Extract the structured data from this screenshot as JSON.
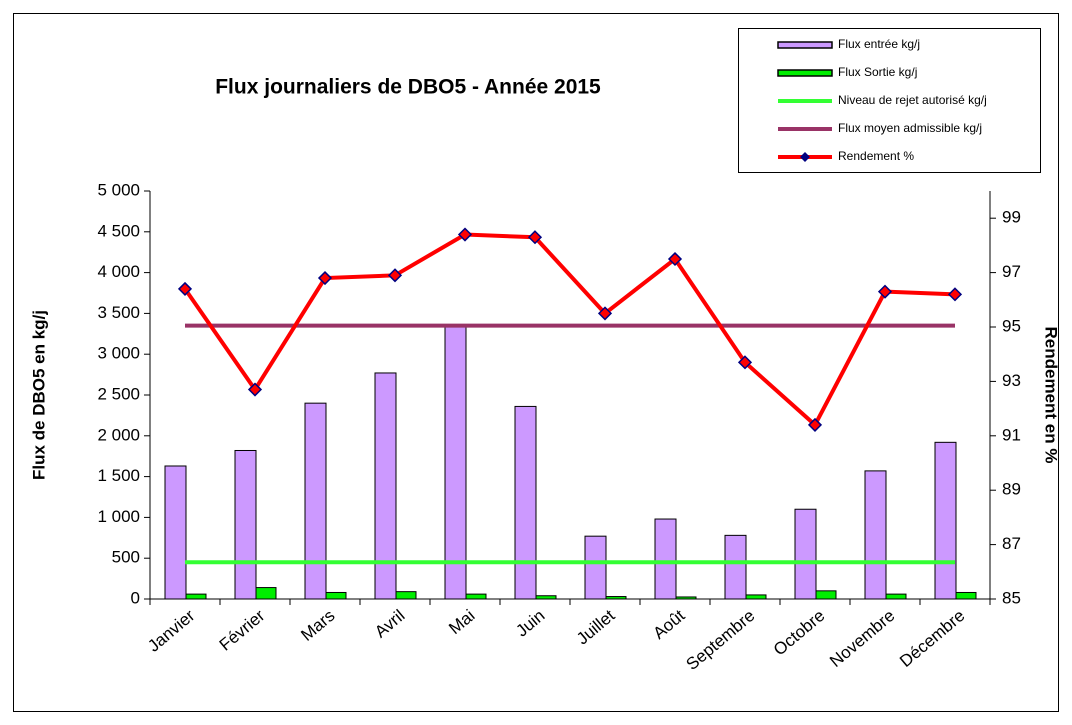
{
  "chart_data": {
    "type": "bar",
    "title": "Flux journaliers de DBO5 - Année 2015",
    "y_label": "Flux de DBO5 en kg/j",
    "y2_label": "Rendement en %",
    "categories": [
      "Janvier",
      "Février",
      "Mars",
      "Avril",
      "Mai",
      "Juin",
      "Juillet",
      "Août",
      "Septembre",
      "Octobre",
      "Novembre",
      "Décembre"
    ],
    "ylim": [
      0,
      5000
    ],
    "yticks": [
      {
        "value": 0,
        "label": "0"
      },
      {
        "value": 500,
        "label": "500"
      },
      {
        "value": 1000,
        "label": "1 000"
      },
      {
        "value": 1500,
        "label": "1 500"
      },
      {
        "value": 2000,
        "label": "2 000"
      },
      {
        "value": 2500,
        "label": "2 500"
      },
      {
        "value": 3000,
        "label": "3 000"
      },
      {
        "value": 3500,
        "label": "3 500"
      },
      {
        "value": 4000,
        "label": "4 000"
      },
      {
        "value": 4500,
        "label": "4 500"
      },
      {
        "value": 5000,
        "label": "5 000"
      }
    ],
    "y2lim": [
      85,
      100
    ],
    "y2ticks": [
      85,
      87,
      89,
      91,
      93,
      95,
      97,
      99
    ],
    "series": [
      {
        "name": "Flux entrée  kg/j",
        "kind": "bar",
        "color": "#cc99ff",
        "values": [
          1630,
          1820,
          2400,
          2770,
          3360,
          2360,
          770,
          980,
          780,
          1100,
          1570,
          1920
        ]
      },
      {
        "name": "Flux Sortie kg/j",
        "kind": "bar",
        "color": "#00ee00",
        "values": [
          60,
          140,
          80,
          90,
          60,
          40,
          30,
          25,
          50,
          100,
          60,
          80
        ]
      },
      {
        "name": "Niveau de rejet autorisé kg/j",
        "kind": "line",
        "color": "#33ff33",
        "values": [
          450,
          450,
          450,
          450,
          450,
          450,
          450,
          450,
          450,
          450,
          450,
          450
        ]
      },
      {
        "name": "Flux moyen admissible kg/j",
        "kind": "line",
        "color": "#993366",
        "values": [
          3350,
          3350,
          3350,
          3350,
          3350,
          3350,
          3350,
          3350,
          3350,
          3350,
          3350,
          3350
        ]
      },
      {
        "name": "Rendement %",
        "kind": "line",
        "marker": true,
        "axis": "y2",
        "color": "#ff0000",
        "values": [
          96.4,
          92.7,
          96.8,
          96.9,
          98.4,
          98.3,
          95.5,
          97.5,
          93.7,
          91.4,
          96.3,
          96.2
        ]
      }
    ]
  }
}
